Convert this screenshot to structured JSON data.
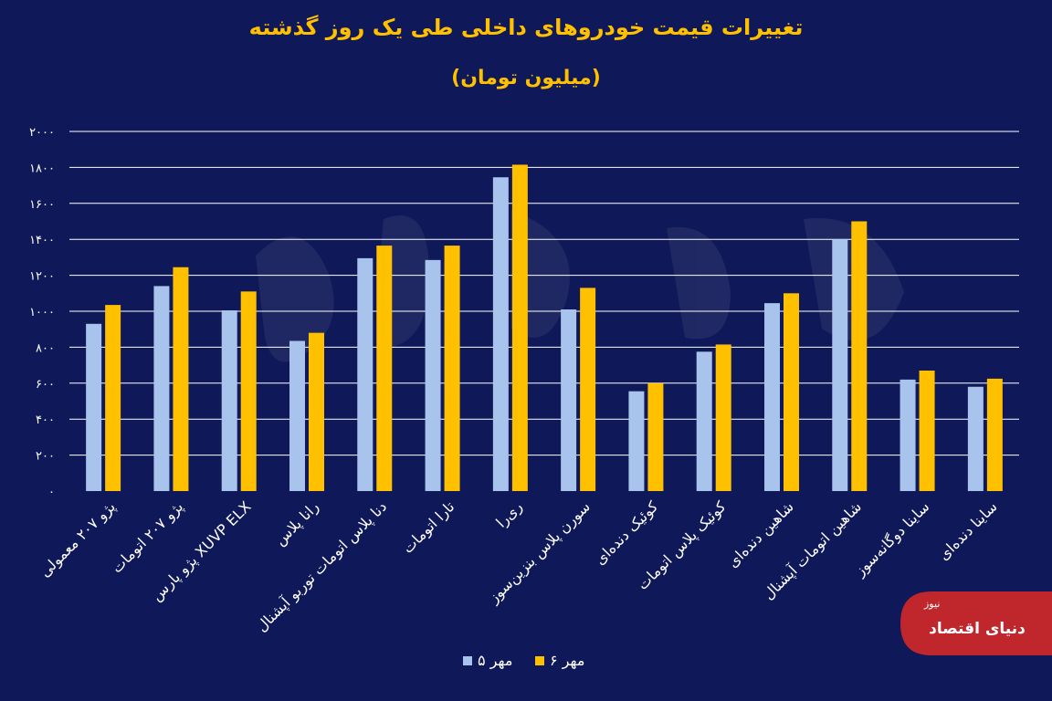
{
  "chart_data": {
    "type": "bar",
    "title": "تغییرات قیمت خودروهای داخلی طی یک روز گذشته",
    "subtitle": "(میلیون تومان)",
    "categories": [
      "پژو ۲۰۷ معمولی",
      "پژو ۲۰۷ اتومات",
      "پژو پارس XUVP ELX",
      "رانا پلاس",
      "دنا پلاس اتومات توربو آپشنال",
      "تارا اتومات",
      "ری‌را",
      "سورن پلاس بنزین‌سوز",
      "کوئیک دنده‌ای",
      "کوئیک پلاس اتومات",
      "شاهین دنده‌ای",
      "شاهین اتومات آپشنال",
      "ساینا دوگانه‌سوز",
      "ساینا دنده‌ای"
    ],
    "series": [
      {
        "name": "۵ مهر",
        "color": "#a9c4ec",
        "values": [
          930,
          1140,
          1005,
          835,
          1295,
          1285,
          1745,
          1010,
          555,
          775,
          1045,
          1400,
          620,
          580
        ]
      },
      {
        "name": "۶ مهر",
        "color": "#ffc000",
        "values": [
          1035,
          1245,
          1110,
          880,
          1365,
          1365,
          1815,
          1130,
          600,
          815,
          1100,
          1500,
          670,
          625
        ]
      }
    ],
    "ylim": [
      0,
      2000
    ],
    "yticks": [
      "۰",
      "۲۰۰",
      "۴۰۰",
      "۶۰۰",
      "۸۰۰",
      "۱۰۰۰",
      "۱۲۰۰",
      "۱۴۰۰",
      "۱۶۰۰",
      "۱۸۰۰",
      "۲۰۰۰"
    ],
    "grid": true,
    "legend": "bottom-center"
  },
  "colors": {
    "background": "#0f1858",
    "title": "#ffc000",
    "text": "#ffffff",
    "grid": "#ffffff"
  },
  "logo": {
    "text": "دنیای اقتصاد",
    "suffix": "نیوز"
  }
}
